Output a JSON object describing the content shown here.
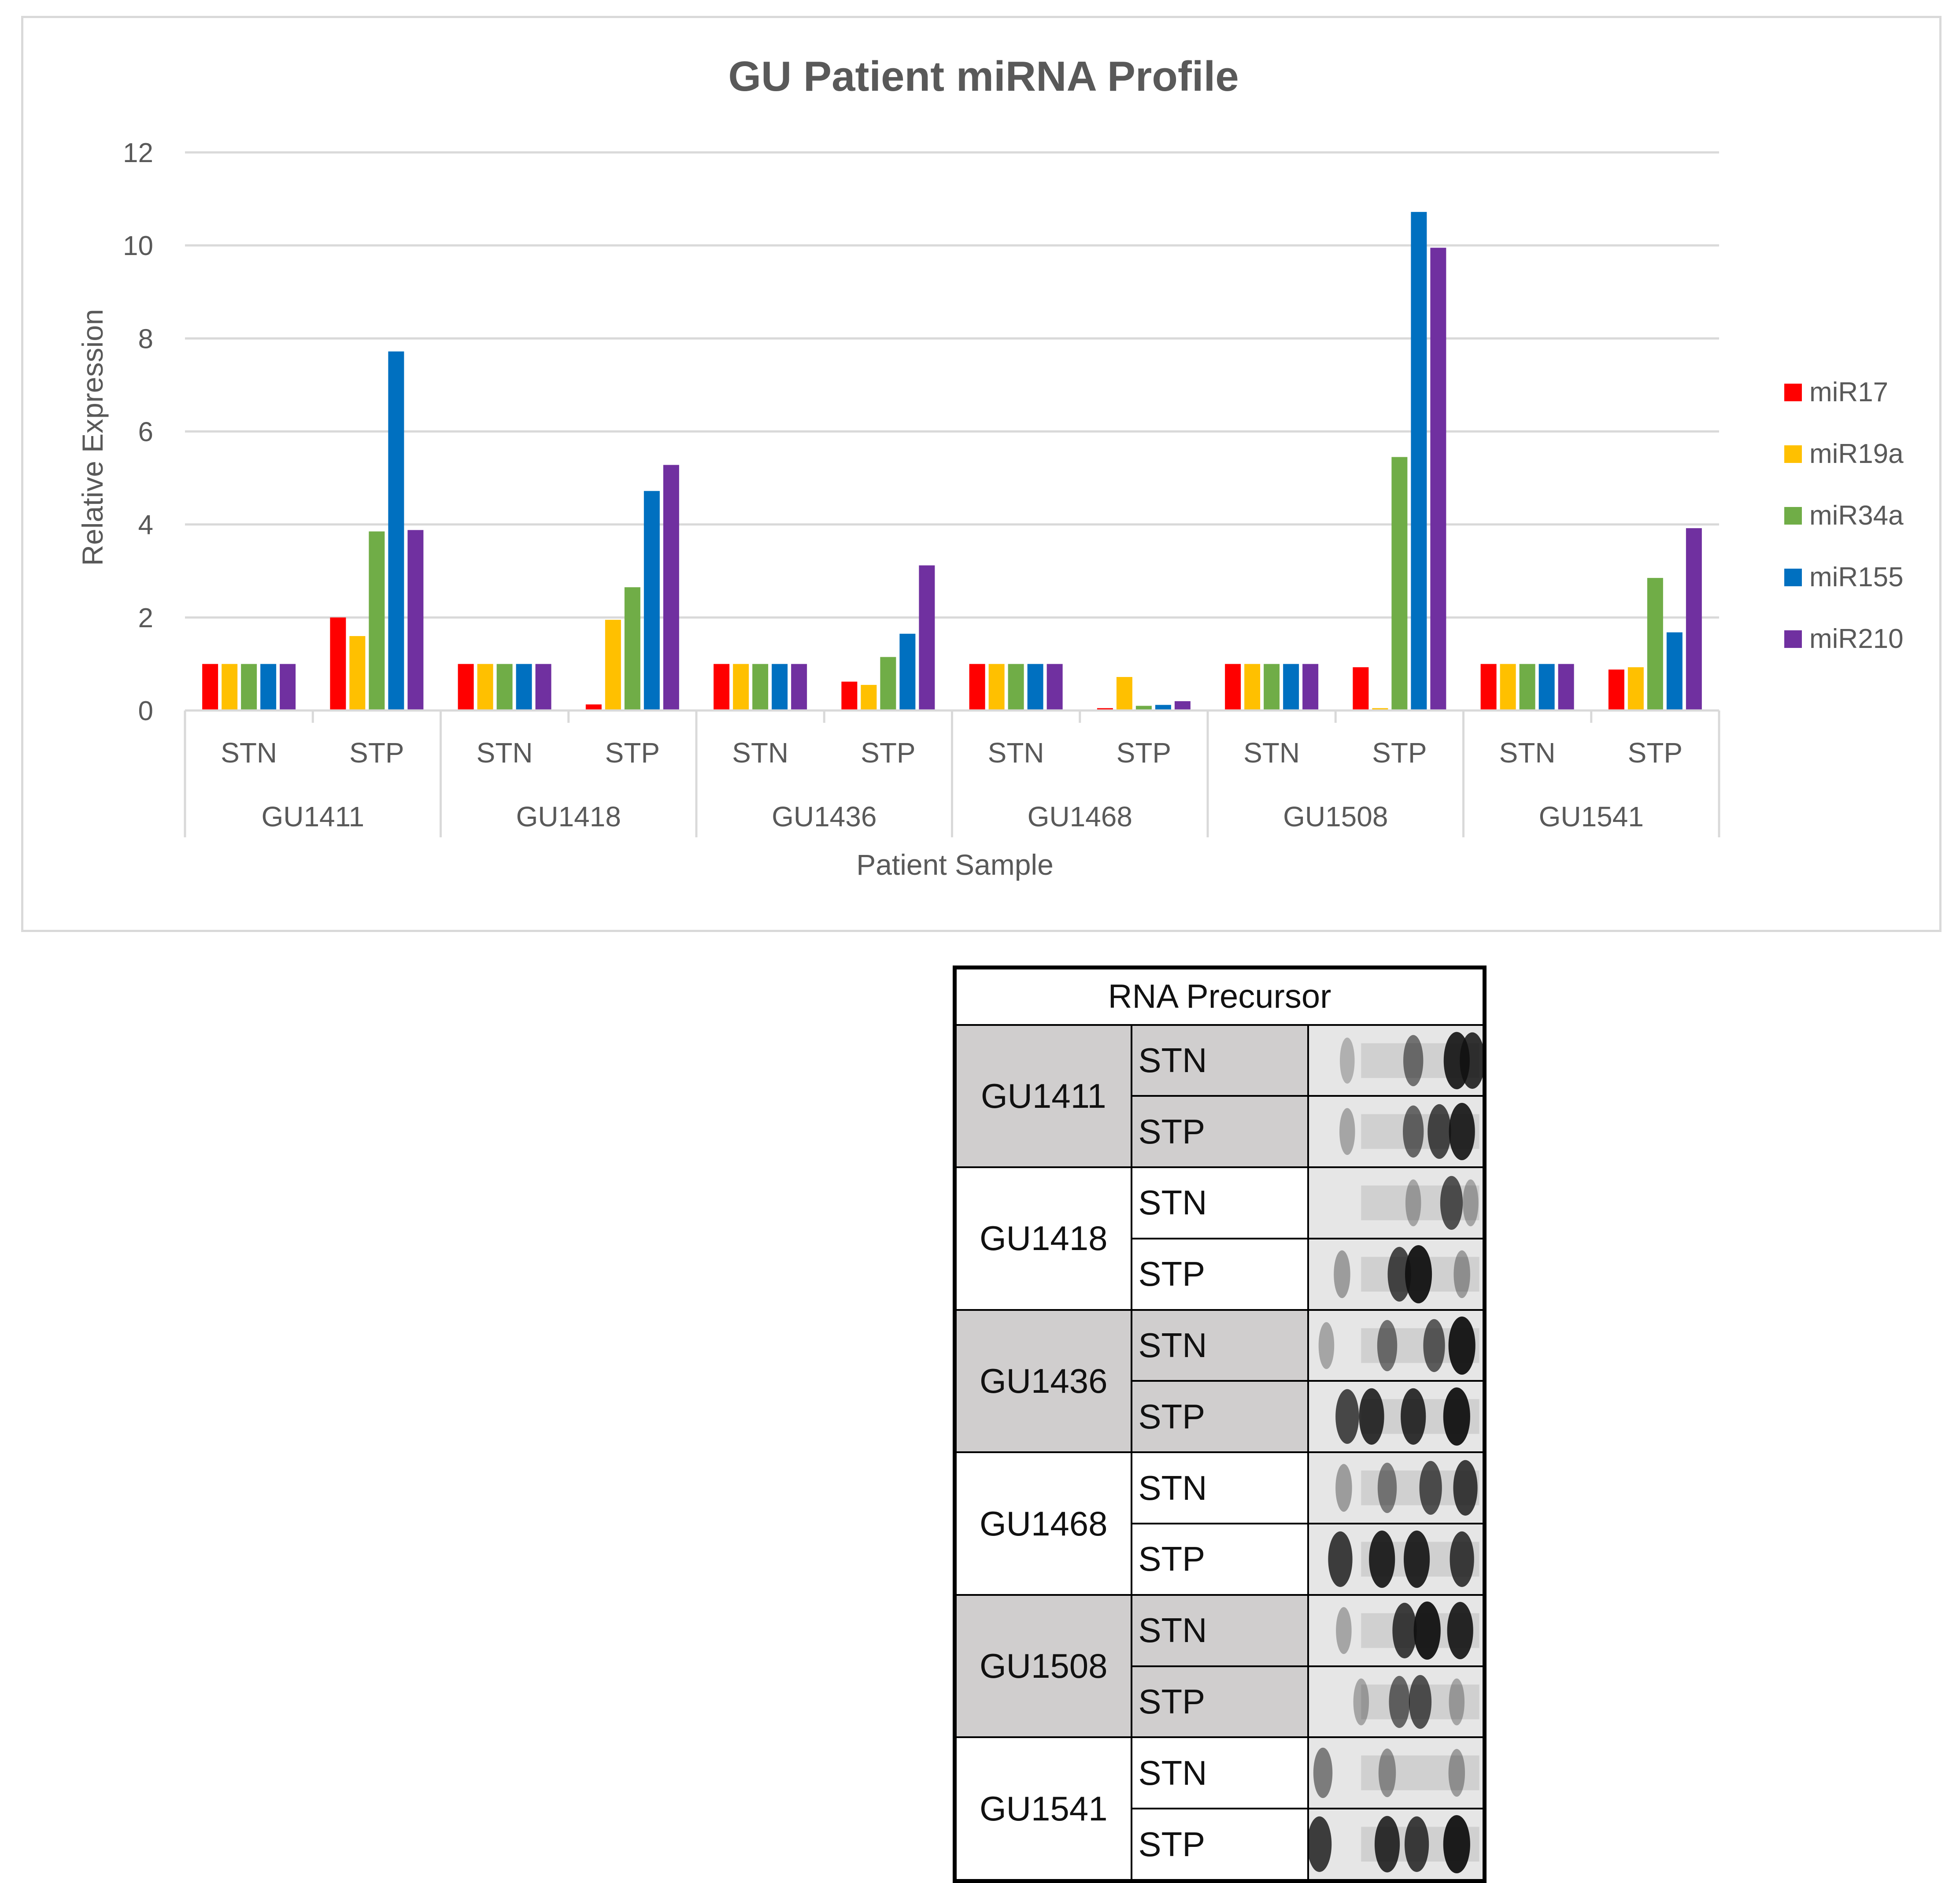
{
  "chart_data": {
    "type": "bar",
    "title": "GU Patient miRNA Profile",
    "xlabel": "Patient Sample",
    "ylabel": "Relative Expression",
    "ylim": [
      0,
      12
    ],
    "yticks": [
      "0",
      "2",
      "4",
      "6",
      "8",
      "10",
      "12"
    ],
    "grid": true,
    "legend_position": "right",
    "groups": [
      "GU1411",
      "GU1418",
      "GU1436",
      "GU1468",
      "GU1508",
      "GU1541"
    ],
    "subcategories": [
      "STN",
      "STP"
    ],
    "series": [
      {
        "name": "miR17",
        "color": "#ff0000",
        "values": [
          1.0,
          2.0,
          1.0,
          0.13,
          1.0,
          0.62,
          1.0,
          0.05,
          1.0,
          0.93,
          1.0,
          0.88
        ]
      },
      {
        "name": "miR19a",
        "color": "#ffc000",
        "values": [
          1.0,
          1.6,
          1.0,
          1.95,
          1.0,
          0.55,
          1.0,
          0.72,
          1.0,
          0.05,
          1.0,
          0.93
        ]
      },
      {
        "name": "miR34a",
        "color": "#70ad47",
        "values": [
          1.0,
          3.85,
          1.0,
          2.65,
          1.0,
          1.15,
          1.0,
          0.1,
          1.0,
          5.45,
          1.0,
          2.85
        ]
      },
      {
        "name": "miR155",
        "color": "#0070c0",
        "values": [
          1.0,
          7.72,
          1.0,
          4.72,
          1.0,
          1.65,
          1.0,
          0.12,
          1.0,
          10.72,
          1.0,
          1.68
        ]
      },
      {
        "name": "miR210",
        "color": "#7030a0",
        "values": [
          1.0,
          3.88,
          1.0,
          5.28,
          1.0,
          3.12,
          1.0,
          0.2,
          1.0,
          9.95,
          1.0,
          3.92
        ]
      }
    ]
  },
  "table": {
    "header": "RNA Precursor",
    "rows": [
      {
        "patient": "GU1411",
        "shaded": true,
        "lanes": [
          {
            "condition": "STN",
            "bands": [
              {
                "pos": 0.22,
                "intensity": 0.25
              },
              {
                "pos": 0.6,
                "intensity": 0.55
              },
              {
                "pos": 0.85,
                "intensity": 0.9
              },
              {
                "pos": 0.94,
                "intensity": 0.85
              }
            ]
          },
          {
            "condition": "STP",
            "bands": [
              {
                "pos": 0.22,
                "intensity": 0.3
              },
              {
                "pos": 0.6,
                "intensity": 0.6
              },
              {
                "pos": 0.75,
                "intensity": 0.75
              },
              {
                "pos": 0.88,
                "intensity": 0.9
              }
            ]
          }
        ]
      },
      {
        "patient": "GU1418",
        "shaded": false,
        "lanes": [
          {
            "condition": "STN",
            "bands": [
              {
                "pos": 0.6,
                "intensity": 0.3
              },
              {
                "pos": 0.82,
                "intensity": 0.7
              },
              {
                "pos": 0.93,
                "intensity": 0.3
              }
            ]
          },
          {
            "condition": "STP",
            "bands": [
              {
                "pos": 0.19,
                "intensity": 0.35
              },
              {
                "pos": 0.52,
                "intensity": 0.75
              },
              {
                "pos": 0.63,
                "intensity": 0.95
              },
              {
                "pos": 0.88,
                "intensity": 0.35
              }
            ]
          }
        ]
      },
      {
        "patient": "GU1436",
        "shaded": true,
        "lanes": [
          {
            "condition": "STN",
            "bands": [
              {
                "pos": 0.1,
                "intensity": 0.3
              },
              {
                "pos": 0.45,
                "intensity": 0.55
              },
              {
                "pos": 0.72,
                "intensity": 0.65
              },
              {
                "pos": 0.88,
                "intensity": 0.95
              }
            ]
          },
          {
            "condition": "STP",
            "bands": [
              {
                "pos": 0.22,
                "intensity": 0.75
              },
              {
                "pos": 0.36,
                "intensity": 0.85
              },
              {
                "pos": 0.6,
                "intensity": 0.85
              },
              {
                "pos": 0.85,
                "intensity": 0.95
              }
            ]
          }
        ]
      },
      {
        "patient": "GU1468",
        "shaded": false,
        "lanes": [
          {
            "condition": "STN",
            "bands": [
              {
                "pos": 0.2,
                "intensity": 0.35
              },
              {
                "pos": 0.45,
                "intensity": 0.5
              },
              {
                "pos": 0.7,
                "intensity": 0.7
              },
              {
                "pos": 0.9,
                "intensity": 0.8
              }
            ]
          },
          {
            "condition": "STP",
            "bands": [
              {
                "pos": 0.18,
                "intensity": 0.8
              },
              {
                "pos": 0.42,
                "intensity": 0.9
              },
              {
                "pos": 0.62,
                "intensity": 0.9
              },
              {
                "pos": 0.88,
                "intensity": 0.8
              }
            ]
          }
        ]
      },
      {
        "patient": "GU1508",
        "shaded": true,
        "lanes": [
          {
            "condition": "STN",
            "bands": [
              {
                "pos": 0.2,
                "intensity": 0.3
              },
              {
                "pos": 0.55,
                "intensity": 0.8
              },
              {
                "pos": 0.68,
                "intensity": 0.95
              },
              {
                "pos": 0.87,
                "intensity": 0.9
              }
            ]
          },
          {
            "condition": "STP",
            "bands": [
              {
                "pos": 0.3,
                "intensity": 0.3
              },
              {
                "pos": 0.52,
                "intensity": 0.6
              },
              {
                "pos": 0.64,
                "intensity": 0.7
              },
              {
                "pos": 0.85,
                "intensity": 0.3
              }
            ]
          }
        ]
      },
      {
        "patient": "GU1541",
        "shaded": false,
        "lanes": [
          {
            "condition": "STN",
            "bands": [
              {
                "pos": 0.08,
                "intensity": 0.5
              },
              {
                "pos": 0.45,
                "intensity": 0.4
              },
              {
                "pos": 0.85,
                "intensity": 0.35
              }
            ]
          },
          {
            "condition": "STP",
            "bands": [
              {
                "pos": 0.06,
                "intensity": 0.8
              },
              {
                "pos": 0.45,
                "intensity": 0.85
              },
              {
                "pos": 0.62,
                "intensity": 0.8
              },
              {
                "pos": 0.85,
                "intensity": 0.95
              }
            ]
          }
        ]
      }
    ]
  }
}
